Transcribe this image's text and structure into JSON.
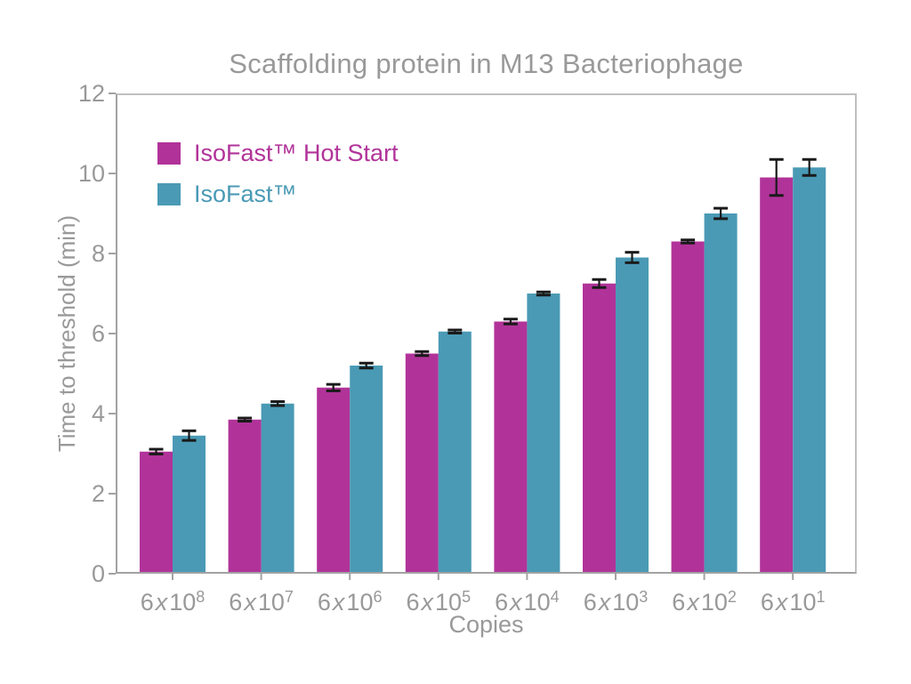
{
  "chart_data": {
    "type": "bar",
    "title": "Scaffolding protein in M13 Bacteriophage",
    "xlabel": "Copies",
    "ylabel": "Time to threshold (min)",
    "ylim": [
      0,
      12
    ],
    "yticks": [
      0,
      2,
      4,
      6,
      8,
      10,
      12
    ],
    "grid": false,
    "legend_position": "upper-left-inside",
    "categories": [
      "6x10^8",
      "6x10^7",
      "6x10^6",
      "6x10^5",
      "6x10^4",
      "6x10^3",
      "6x10^2",
      "6x10^1"
    ],
    "series": [
      {
        "name": "IsoFast™ Hot Start",
        "color": "#b13399",
        "values": [
          3.05,
          3.85,
          4.65,
          5.5,
          6.3,
          7.25,
          8.3,
          9.9
        ],
        "errors": [
          0.06,
          0.04,
          0.08,
          0.05,
          0.06,
          0.1,
          0.04,
          0.45
        ]
      },
      {
        "name": "IsoFast™",
        "color": "#4a9ab5",
        "values": [
          3.45,
          4.25,
          5.2,
          6.05,
          7.0,
          7.9,
          9.0,
          10.15
        ],
        "errors": [
          0.12,
          0.05,
          0.06,
          0.04,
          0.04,
          0.13,
          0.13,
          0.2
        ]
      }
    ],
    "error_bar_color": "#1a1a1a",
    "axis_color": "#a2a2a2",
    "text_color": "#999999"
  }
}
